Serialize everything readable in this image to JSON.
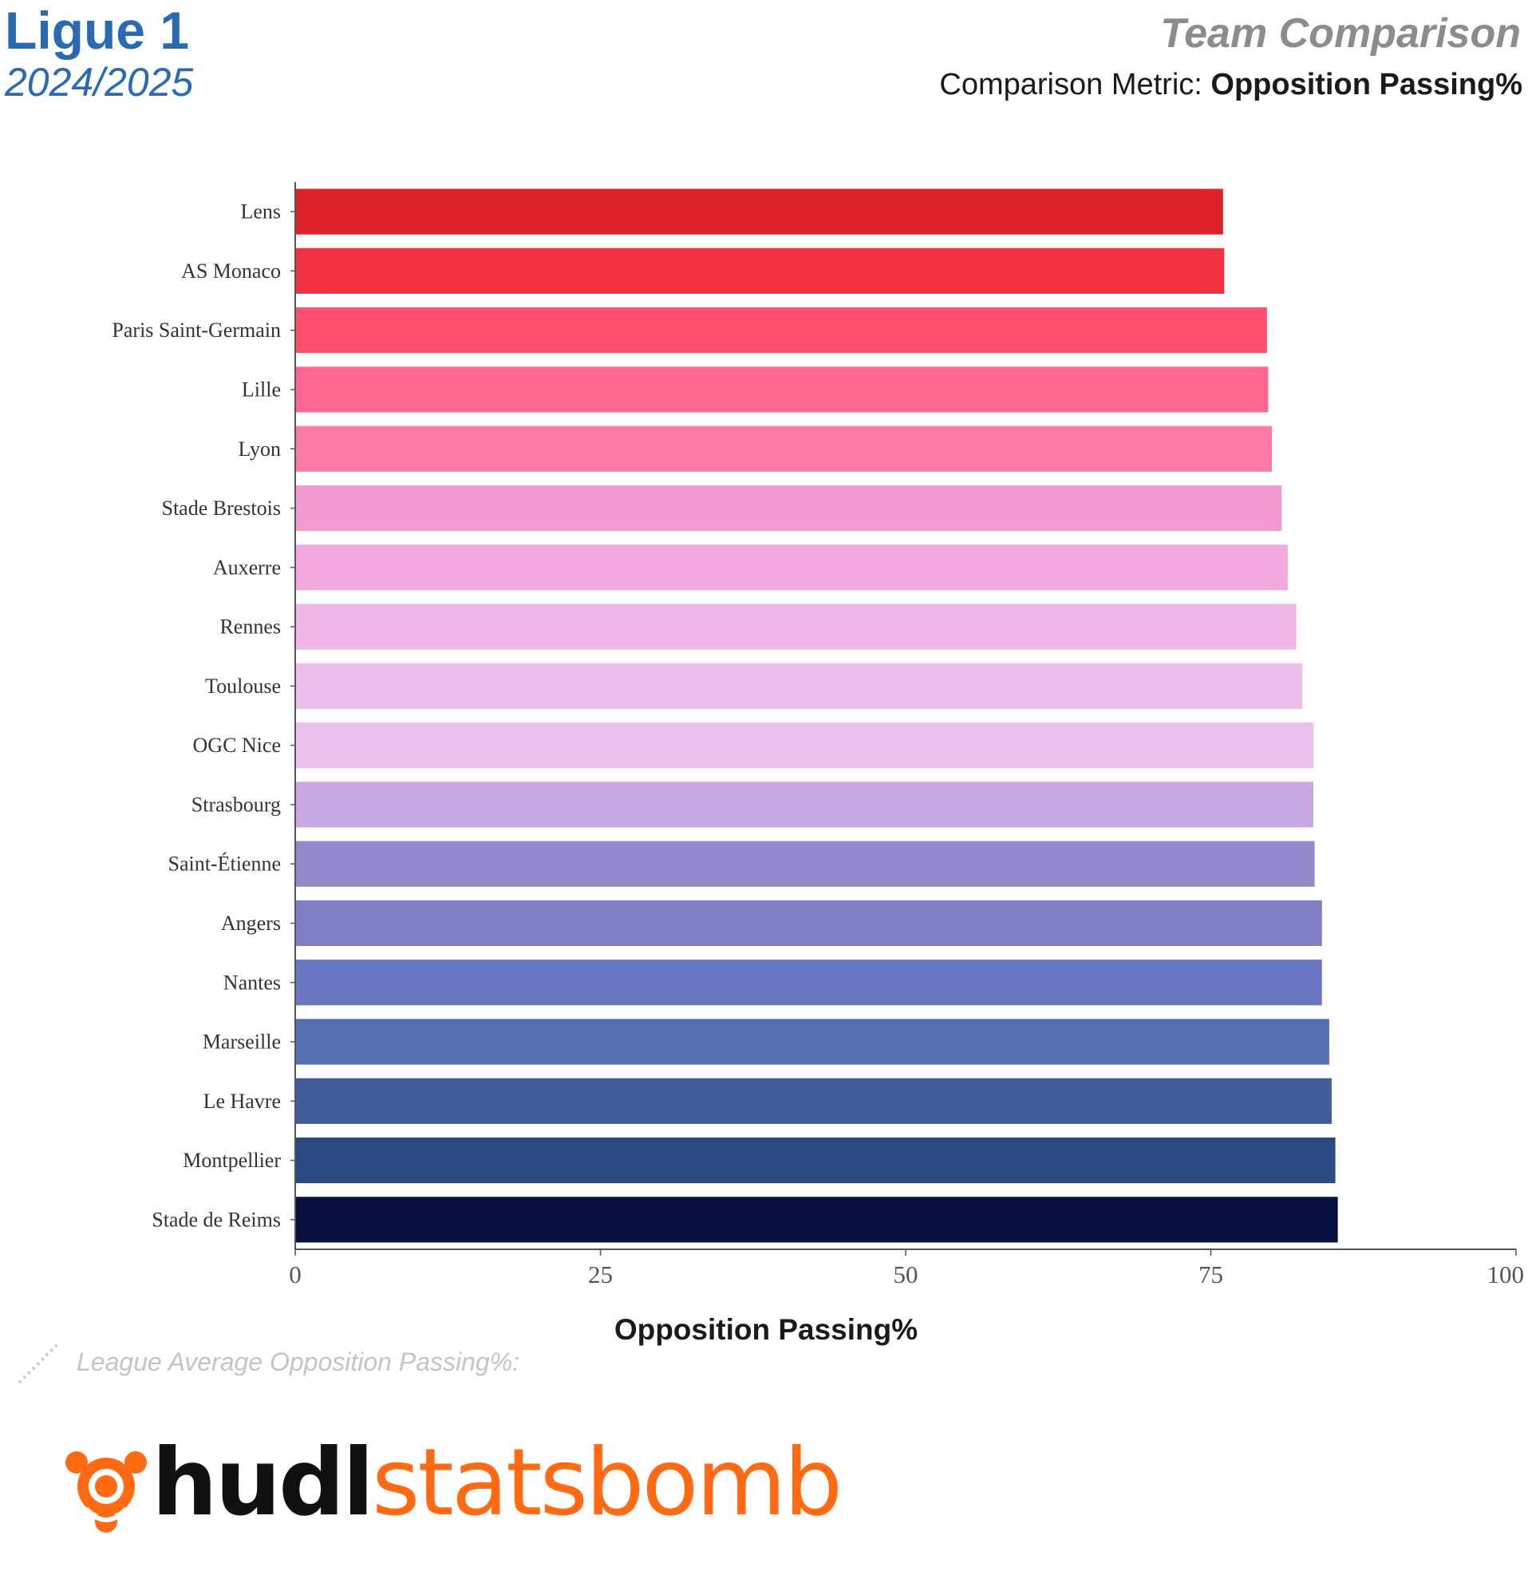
{
  "header": {
    "league": "Ligue 1",
    "season": "2024/2025",
    "title": "Team Comparison",
    "metric_label": "Comparison Metric:",
    "metric_value": "Opposition Passing%"
  },
  "footer": {
    "league_average_label": "League Average Opposition Passing%:",
    "logo_text_bold": "hudl",
    "logo_text": "statsbomb"
  },
  "colors": {
    "header_blue": "#2a6ab0",
    "title_gray": "#8c8c8c",
    "logo_orange": "#ff6a13"
  },
  "chart_data": {
    "type": "bar",
    "orientation": "horizontal",
    "xlabel": "Opposition Passing%",
    "ylabel": "",
    "xlim": [
      0,
      100
    ],
    "xticks": [
      0,
      25,
      50,
      75,
      100
    ],
    "grid": false,
    "categories": [
      "Lens",
      "AS Monaco",
      "Paris Saint-Germain",
      "Lille",
      "Lyon",
      "Stade Brestois",
      "Auxerre",
      "Rennes",
      "Toulouse",
      "OGC Nice",
      "Strasbourg",
      "Saint-Étienne",
      "Angers",
      "Nantes",
      "Marseille",
      "Le Havre",
      "Montpellier",
      "Stade de Reims"
    ],
    "values": [
      76.0,
      76.1,
      79.6,
      79.7,
      80.0,
      80.8,
      81.3,
      82.0,
      82.5,
      83.4,
      83.4,
      83.5,
      84.1,
      84.1,
      84.7,
      84.9,
      85.2,
      85.4
    ],
    "colors": [
      "#dd2329",
      "#f33342",
      "#ff4f6f",
      "#ff6792",
      "#fd79a6",
      "#f49ad0",
      "#f3a9de",
      "#f1b5e6",
      "#efbdec",
      "#eac1ed",
      "#c8a9e3",
      "#9288cb",
      "#7e7ec6",
      "#6977c1",
      "#566fb3",
      "#405c9b",
      "#2a4980",
      "#081040"
    ]
  }
}
